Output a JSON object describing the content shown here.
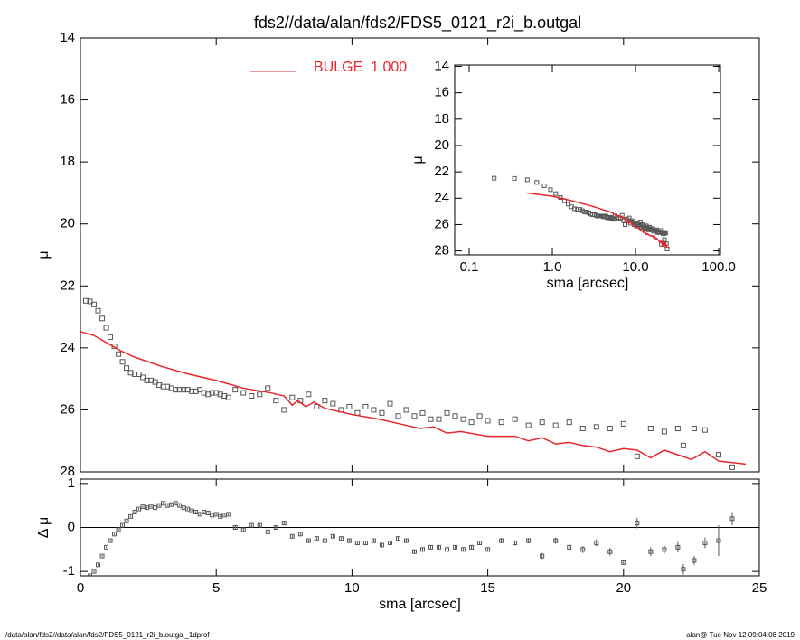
{
  "chart_data": [
    {
      "type": "scatter",
      "title": "fds2//data/alan/fds2/FDS5_0121_r2i_b.outgal",
      "ylabel": "μ",
      "xlim": [
        0,
        25
      ],
      "ylim": [
        28,
        14
      ],
      "xticks": [
        0,
        5,
        10,
        15,
        20,
        25
      ],
      "yticks": [
        14,
        16,
        18,
        20,
        22,
        24,
        26,
        28
      ],
      "series": [
        {
          "color": "#555555",
          "marker": "square",
          "x": [
            0.2,
            0.35,
            0.5,
            0.65,
            0.8,
            0.95,
            1.1,
            1.25,
            1.4,
            1.55,
            1.7,
            1.85,
            2.0,
            2.15,
            2.3,
            2.45,
            2.6,
            2.75,
            2.9,
            3.05,
            3.2,
            3.35,
            3.5,
            3.65,
            3.8,
            3.95,
            4.1,
            4.25,
            4.4,
            4.55,
            4.7,
            4.85,
            5.0,
            5.15,
            5.3,
            5.45,
            5.7,
            6.0,
            6.3,
            6.6,
            6.9,
            7.2,
            7.5,
            7.8,
            8.1,
            8.4,
            8.7,
            9.0,
            9.3,
            9.6,
            9.9,
            10.2,
            10.5,
            10.8,
            11.1,
            11.4,
            11.7,
            12.0,
            12.3,
            12.6,
            12.9,
            13.2,
            13.5,
            13.8,
            14.1,
            14.4,
            14.7,
            15.0,
            15.5,
            16.0,
            16.5,
            17.0,
            17.5,
            18.0,
            18.5,
            19.0,
            19.5,
            20.0,
            20.5,
            21.0,
            21.5,
            22.0,
            22.2,
            22.6,
            23.0,
            23.5,
            24.0
          ],
          "values": [
            22.48,
            22.5,
            22.6,
            22.8,
            23.05,
            23.35,
            23.65,
            23.95,
            24.2,
            24.45,
            24.65,
            24.8,
            24.85,
            24.85,
            24.95,
            25.05,
            25.05,
            25.1,
            25.2,
            25.25,
            25.25,
            25.3,
            25.35,
            25.35,
            25.35,
            25.35,
            25.4,
            25.4,
            25.35,
            25.45,
            25.5,
            25.45,
            25.45,
            25.5,
            25.55,
            25.6,
            25.35,
            25.45,
            25.55,
            25.5,
            25.3,
            25.7,
            26.0,
            25.6,
            25.7,
            25.5,
            25.9,
            25.7,
            25.8,
            26.0,
            25.9,
            26.1,
            25.9,
            26.0,
            26.1,
            25.8,
            26.2,
            26.0,
            26.2,
            26.1,
            26.3,
            26.3,
            26.1,
            26.2,
            26.3,
            26.4,
            26.2,
            26.35,
            26.4,
            26.3,
            26.5,
            26.4,
            26.5,
            26.4,
            26.6,
            26.55,
            26.6,
            26.45,
            27.5,
            26.6,
            26.7,
            26.6,
            27.15,
            26.6,
            26.65,
            27.45,
            27.85
          ]
        },
        {
          "name": "BULGE  1.000",
          "color": "#e8262b",
          "style": "line",
          "x": [
            0,
            0.5,
            1,
            1.5,
            2,
            3,
            4,
            5,
            6,
            7,
            7.5,
            7.8,
            8,
            8.3,
            8.6,
            9,
            9.5,
            10,
            11,
            12,
            12.5,
            13,
            13.5,
            14,
            15,
            16,
            16.5,
            17,
            17.5,
            18,
            18.5,
            19,
            19.5,
            20,
            20.5,
            21,
            21.5,
            22,
            22.5,
            23,
            23.5,
            24,
            24.5
          ],
          "values": [
            23.48,
            23.6,
            23.85,
            24.1,
            24.3,
            24.6,
            24.85,
            25.05,
            25.3,
            25.45,
            25.55,
            25.85,
            25.7,
            25.9,
            25.75,
            25.95,
            26.05,
            26.15,
            26.3,
            26.5,
            26.6,
            26.55,
            26.75,
            26.7,
            26.85,
            26.85,
            27.0,
            26.9,
            27.1,
            27.05,
            27.15,
            27.2,
            27.35,
            27.25,
            27.3,
            27.55,
            27.3,
            27.45,
            27.6,
            27.35,
            27.65,
            27.7,
            27.75
          ]
        }
      ]
    },
    {
      "type": "errorbar",
      "xlabel": "sma [arcsec]",
      "ylabel": "Δ μ",
      "color": "#555555",
      "zero_line": true,
      "xlim": [
        0,
        25
      ],
      "ylim": [
        -1.1,
        1.1
      ],
      "xticks": [
        0,
        5,
        10,
        15,
        20,
        25
      ],
      "yticks": [
        -1,
        0,
        1
      ],
      "values": [
        -1.2,
        -1.1,
        -1.0,
        -0.85,
        -0.65,
        -0.45,
        -0.3,
        -0.15,
        -0.05,
        0.05,
        0.15,
        0.25,
        0.35,
        0.42,
        0.47,
        0.45,
        0.48,
        0.45,
        0.5,
        0.55,
        0.5,
        0.52,
        0.55,
        0.5,
        0.45,
        0.42,
        0.38,
        0.35,
        0.3,
        0.35,
        0.33,
        0.28,
        0.3,
        0.25,
        0.28,
        0.3,
        0.0,
        -0.05,
        0.05,
        0.05,
        -0.1,
        0.0,
        0.1,
        -0.2,
        -0.15,
        -0.3,
        -0.25,
        -0.3,
        -0.2,
        -0.25,
        -0.3,
        -0.35,
        -0.35,
        -0.3,
        -0.4,
        -0.35,
        -0.25,
        -0.3,
        -0.55,
        -0.5,
        -0.45,
        -0.45,
        -0.5,
        -0.45,
        -0.5,
        -0.45,
        -0.35,
        -0.5,
        -0.3,
        -0.35,
        -0.3,
        -0.65,
        -0.3,
        -0.45,
        -0.5,
        -0.35,
        -0.55,
        -0.8,
        0.1,
        -0.55,
        -0.5,
        -0.45,
        -0.95,
        -0.75,
        -0.35,
        -0.3,
        0.2
      ],
      "errors": [
        0.02,
        0.02,
        0.02,
        0.02,
        0.02,
        0.02,
        0.02,
        0.02,
        0.02,
        0.02,
        0.02,
        0.02,
        0.02,
        0.02,
        0.02,
        0.02,
        0.02,
        0.02,
        0.02,
        0.02,
        0.02,
        0.02,
        0.02,
        0.02,
        0.02,
        0.02,
        0.02,
        0.02,
        0.02,
        0.02,
        0.02,
        0.02,
        0.02,
        0.02,
        0.02,
        0.02,
        0.03,
        0.03,
        0.03,
        0.03,
        0.03,
        0.03,
        0.03,
        0.03,
        0.03,
        0.03,
        0.03,
        0.03,
        0.03,
        0.03,
        0.03,
        0.03,
        0.03,
        0.03,
        0.03,
        0.03,
        0.04,
        0.04,
        0.04,
        0.04,
        0.04,
        0.04,
        0.04,
        0.04,
        0.04,
        0.04,
        0.05,
        0.05,
        0.06,
        0.06,
        0.06,
        0.07,
        0.07,
        0.07,
        0.08,
        0.08,
        0.09,
        0.05,
        0.12,
        0.1,
        0.1,
        0.12,
        0.12,
        0.1,
        0.12,
        0.35,
        0.15
      ]
    },
    {
      "type": "scatter",
      "log_x": true,
      "xlabel": "sma [arcsec]",
      "ylabel": "μ",
      "xlim": [
        0.067,
        105
      ],
      "ylim": [
        28.3,
        13.9
      ],
      "xticks": [
        0.1,
        {
          "value": 1,
          "label": "1.0"
        },
        {
          "value": 10,
          "label": "10.0"
        },
        {
          "value": 100,
          "label": "100.0"
        }
      ],
      "yticks": [
        14,
        16,
        18,
        20,
        22,
        24,
        26,
        28
      ]
    }
  ],
  "footer": {
    "left": "/data/alan/fds2//data/alan/fds2/FDS5_0121_r2i_b.outgal_1dprof",
    "right": "alan@  Tue Nov 12 09:04:08 2019"
  }
}
